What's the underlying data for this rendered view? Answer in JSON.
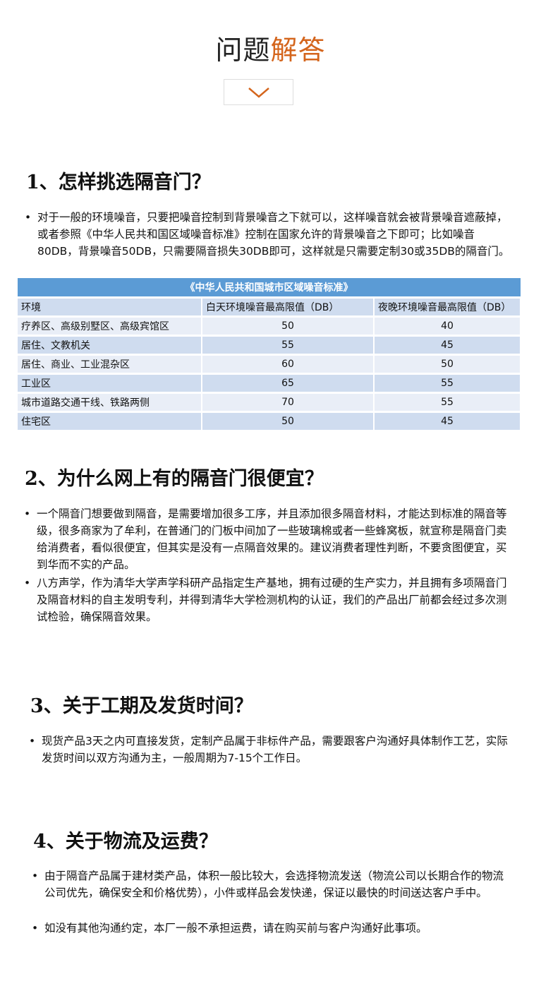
{
  "header": {
    "title_a": "问题",
    "title_b": "解答",
    "accent": "#d4651c"
  },
  "sections": [
    {
      "heading": "1、怎样挑选隔音门？",
      "bullets": [
        "对于一般的环境噪音，只要把噪音控制到背景噪音之下就可以，这样噪音就会被背景噪音遮蔽掉，或者参照《中华人民共和国区域噪音标准》控制在国家允许的背景噪音之下即可；比如噪音80DB，背景噪音50DB，只需要隔音损失30DB即可，这样就是只需要定制30或35DB的隔音门。"
      ]
    },
    {
      "heading": "2、为什么网上有的隔音门很便宜？",
      "bullets": [
        "一个隔音门想要做到隔音，是需要增加很多工序，并且添加很多隔音材料，才能达到标准的隔音等级，很多商家为了牟利，在普通门的门板中间加了一些玻璃棉或者一些蜂窝板，就宣称是隔音门卖给消费者，看似很便宜，但其实是没有一点隔音效果的。建议消费者理性判断，不要贪图便宜，买到华而不实的产品。",
        "八方声学，作为清华大学声学科研产品指定生产基地，拥有过硬的生产实力，并且拥有多项隔音门及隔音材料的自主发明专利，并得到清华大学检测机构的认证，我们的产品出厂前都会经过多次测试检验，确保隔音效果。"
      ]
    },
    {
      "heading": "3、关于工期及发货时间？",
      "bullets": [
        "现货产品3天之内可直接发货，定制产品属于非标件产品，需要跟客户沟通好具体制作工艺，实际发货时间以双方沟通为主，一般周期为7-15个工作日。"
      ]
    },
    {
      "heading": "4、关于物流及运费？",
      "bullets": [
        "由于隔音产品属于建材类产品，体积一般比较大，会选择物流发送（物流公司以长期合作的物流公司优先，确保安全和价格优势），小件或样品会发快递，保证以最快的时间送达客户手中。",
        "如没有其他沟通约定，本厂一般不承担运费，请在购买前与客户沟通好此事项。"
      ]
    }
  ],
  "table": {
    "title": "《中华人民共和国城市区域噪音标准》",
    "headers": [
      "环境",
      "白天环境噪音最高限值（DB）",
      "夜晚环境噪音最高限值（DB）"
    ],
    "rows": [
      [
        "疗养区、高级别墅区、高级宾馆区",
        "50",
        "40"
      ],
      [
        "居住、文教机关",
        "55",
        "45"
      ],
      [
        "居住、商业、工业混杂区",
        "60",
        "50"
      ],
      [
        "工业区",
        "65",
        "55"
      ],
      [
        "城市道路交通干线、铁路两侧",
        "70",
        "55"
      ],
      [
        "住宅区",
        "50",
        "45"
      ]
    ]
  }
}
